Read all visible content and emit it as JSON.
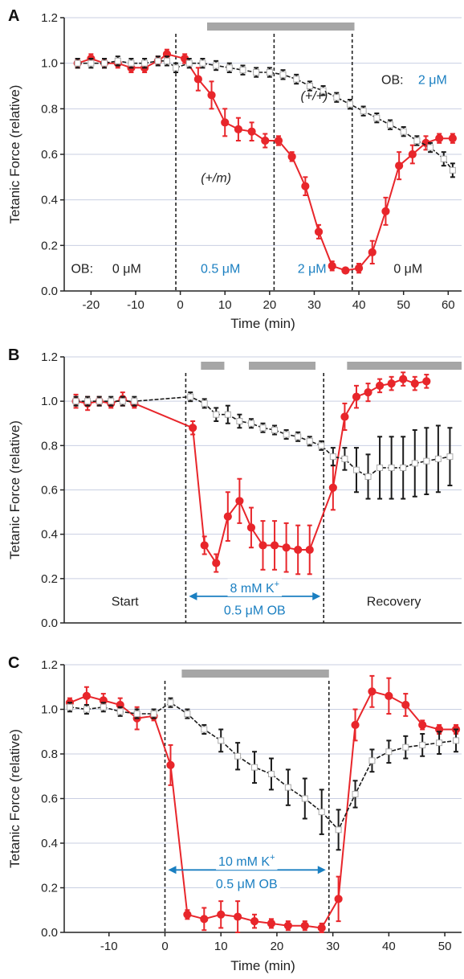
{
  "colors": {
    "red": "#e8262b",
    "black": "#1a1a1a",
    "grey_bar": "#a6a6a6",
    "grid": "#c9cfe2",
    "blue": "#1a7fc1"
  },
  "chart_data": [
    {
      "type": "line",
      "panel": "A",
      "xlabel": "Time (min)",
      "ylabel": "Tetanic Force (relative)",
      "xlim": [
        -26,
        63
      ],
      "ylim": [
        0,
        1.2
      ],
      "xticks": [
        -20,
        -10,
        0,
        10,
        20,
        30,
        40,
        50,
        60
      ],
      "yticks": [
        0.0,
        0.2,
        0.4,
        0.6,
        0.8,
        1.0,
        1.2
      ],
      "ytick_labels": [
        "0.0",
        "0.2",
        "0.4",
        "0.6",
        "0.8",
        "1.0",
        "1.2"
      ],
      "grid": true,
      "vlines": [
        -1,
        21,
        38.5
      ],
      "grey_bars": [
        [
          6,
          39
        ]
      ],
      "series": [
        {
          "color": "red",
          "marker": "circle",
          "x": [
            -23,
            -20,
            -17,
            -14,
            -11,
            -8,
            -5,
            -3,
            1,
            4,
            7,
            10,
            13,
            16,
            19,
            22,
            25,
            28,
            31,
            34,
            37,
            40,
            43,
            46,
            49,
            52,
            55,
            58,
            61
          ],
          "y": [
            1.0,
            1.02,
            1.0,
            1.0,
            0.98,
            0.98,
            1.01,
            1.04,
            1.02,
            0.93,
            0.86,
            0.74,
            0.71,
            0.7,
            0.66,
            0.66,
            0.59,
            0.46,
            0.26,
            0.11,
            0.09,
            0.1,
            0.17,
            0.35,
            0.55,
            0.6,
            0.65,
            0.67,
            0.67
          ],
          "err": [
            0.02,
            0.02,
            0.02,
            0.02,
            0.02,
            0.02,
            0.02,
            0.02,
            0.02,
            0.05,
            0.06,
            0.06,
            0.05,
            0.04,
            0.03,
            0.02,
            0.02,
            0.04,
            0.03,
            0.02,
            0.01,
            0.02,
            0.05,
            0.06,
            0.06,
            0.04,
            0.03,
            0.02,
            0.02
          ]
        },
        {
          "color": "black",
          "marker": "square",
          "x": [
            -23,
            -20,
            -17,
            -14,
            -11,
            -8,
            -5,
            -3,
            -1,
            2,
            5,
            8,
            11,
            14,
            17,
            20,
            23,
            26,
            29,
            32,
            35,
            38,
            41,
            44,
            47,
            50,
            53,
            56,
            59,
            61
          ],
          "y": [
            1.0,
            1.0,
            1.0,
            1.01,
            1.0,
            1.0,
            1.01,
            1.01,
            0.98,
            1.0,
            1.0,
            0.99,
            0.98,
            0.97,
            0.96,
            0.96,
            0.95,
            0.93,
            0.9,
            0.88,
            0.85,
            0.82,
            0.79,
            0.76,
            0.73,
            0.7,
            0.66,
            0.63,
            0.58,
            0.53
          ],
          "err": [
            0.02,
            0.02,
            0.02,
            0.02,
            0.02,
            0.02,
            0.02,
            0.02,
            0.02,
            0.02,
            0.02,
            0.02,
            0.02,
            0.02,
            0.02,
            0.02,
            0.02,
            0.02,
            0.02,
            0.02,
            0.02,
            0.02,
            0.02,
            0.02,
            0.02,
            0.02,
            0.02,
            0.02,
            0.03,
            0.03
          ]
        }
      ],
      "annotations": [
        {
          "text": "OB:",
          "x": -22,
          "y": 0.1,
          "color": "black"
        },
        {
          "text": "0 μM",
          "x": -12,
          "y": 0.1,
          "color": "black"
        },
        {
          "text": "0.5 μM",
          "x": 9,
          "y": 0.1,
          "color": "blue"
        },
        {
          "text": "2 μM",
          "x": 29.5,
          "y": 0.1,
          "color": "blue"
        },
        {
          "text": "0 μM",
          "x": 51,
          "y": 0.1,
          "color": "black"
        },
        {
          "text": "(+/+)",
          "x": 30,
          "y": 0.86,
          "color": "black",
          "italic": true
        },
        {
          "text": "(+/m)",
          "x": 8,
          "y": 0.5,
          "color": "black",
          "italic": true
        },
        {
          "text": "OB:",
          "x": 47.5,
          "y": 0.93,
          "color": "black"
        },
        {
          "text": "2 μM",
          "x": 56.5,
          "y": 0.93,
          "color": "blue"
        }
      ]
    },
    {
      "type": "line",
      "panel": "B",
      "xlabel": "",
      "ylabel": "Tetanic Force (relative)",
      "xlim": [
        0,
        34
      ],
      "ylim": [
        0,
        1.2
      ],
      "yticks": [
        0.0,
        0.2,
        0.4,
        0.6,
        0.8,
        1.0,
        1.2
      ],
      "ytick_labels": [
        "0.0",
        "0.2",
        "0.4",
        "0.6",
        "0.8",
        "1.0",
        "1.2"
      ],
      "grid": true,
      "vlines": [
        10.4,
        22.2
      ],
      "grey_bars": [
        [
          11.7,
          13.7
        ],
        [
          15.8,
          21.5
        ],
        [
          24.2,
          34
        ]
      ],
      "series": [
        {
          "color": "red",
          "marker": "circle",
          "x": [
            1,
            2,
            3,
            4,
            5,
            6,
            11,
            12,
            13,
            14,
            15,
            16,
            17,
            18,
            19,
            20,
            21,
            23,
            24,
            25,
            26,
            27,
            28,
            29,
            30,
            31
          ],
          "y": [
            1.0,
            0.99,
            1.0,
            0.99,
            1.01,
            0.99,
            0.88,
            0.35,
            0.27,
            0.48,
            0.55,
            0.43,
            0.35,
            0.35,
            0.34,
            0.33,
            0.33,
            0.61,
            0.93,
            1.02,
            1.04,
            1.07,
            1.08,
            1.1,
            1.08,
            1.09
          ],
          "err": [
            0.03,
            0.03,
            0.02,
            0.02,
            0.03,
            0.02,
            0.03,
            0.04,
            0.04,
            0.11,
            0.1,
            0.09,
            0.11,
            0.11,
            0.11,
            0.11,
            0.11,
            0.1,
            0.06,
            0.05,
            0.04,
            0.03,
            0.03,
            0.03,
            0.03,
            0.03
          ]
        },
        {
          "color": "black",
          "marker": "square",
          "x": [
            1,
            2,
            3,
            4,
            5,
            6,
            10.8,
            12,
            13,
            14,
            15,
            16,
            17,
            18,
            19,
            20,
            21,
            22,
            23,
            24,
            25,
            26,
            27,
            28,
            29,
            30,
            31,
            32,
            33
          ],
          "y": [
            1.0,
            1.0,
            1.0,
            1.0,
            1.0,
            1.0,
            1.02,
            0.99,
            0.94,
            0.94,
            0.91,
            0.9,
            0.88,
            0.87,
            0.85,
            0.84,
            0.82,
            0.8,
            0.75,
            0.74,
            0.69,
            0.66,
            0.7,
            0.7,
            0.7,
            0.72,
            0.73,
            0.74,
            0.75
          ],
          "err": [
            0.02,
            0.02,
            0.02,
            0.02,
            0.02,
            0.02,
            0.02,
            0.02,
            0.03,
            0.04,
            0.03,
            0.02,
            0.02,
            0.02,
            0.02,
            0.02,
            0.02,
            0.02,
            0.04,
            0.05,
            0.1,
            0.1,
            0.14,
            0.14,
            0.14,
            0.15,
            0.15,
            0.15,
            0.13
          ]
        }
      ],
      "annotations": [
        {
          "text": "Start",
          "x": 5.2,
          "y": 0.1,
          "color": "black"
        },
        {
          "text": "8 mM K",
          "x": 16.3,
          "y": 0.16,
          "color": "blue",
          "sup": "+"
        },
        {
          "text": "0.5 μM OB",
          "x": 16.3,
          "y": 0.06,
          "color": "blue"
        },
        {
          "text": "Recovery",
          "x": 28.2,
          "y": 0.1,
          "color": "black"
        }
      ],
      "arrows": [
        {
          "x1": 10.4,
          "x2": 22.2,
          "y": 0.12
        }
      ]
    },
    {
      "type": "line",
      "panel": "C",
      "xlabel": "Time (min)",
      "ylabel": "Tetanic Force (relative)",
      "xlim": [
        -18,
        53
      ],
      "ylim": [
        0,
        1.2
      ],
      "xticks": [
        -10,
        0,
        10,
        20,
        30,
        40,
        50
      ],
      "yticks": [
        0.0,
        0.2,
        0.4,
        0.6,
        0.8,
        1.0,
        1.2
      ],
      "ytick_labels": [
        "0.0",
        "0.2",
        "0.4",
        "0.6",
        "0.8",
        "1.0",
        "1.2"
      ],
      "grid": true,
      "vlines": [
        0,
        29.3
      ],
      "grey_bars": [
        [
          3,
          29.3
        ]
      ],
      "series": [
        {
          "color": "red",
          "marker": "circle",
          "x": [
            -17,
            -14,
            -11,
            -8,
            -5,
            -2,
            1,
            4,
            7,
            10,
            13,
            16,
            19,
            22,
            25,
            28,
            31,
            34,
            37,
            40,
            43,
            46,
            49,
            52
          ],
          "y": [
            1.03,
            1.06,
            1.04,
            1.02,
            0.96,
            0.97,
            0.75,
            0.08,
            0.06,
            0.08,
            0.07,
            0.05,
            0.04,
            0.03,
            0.03,
            0.02,
            0.15,
            0.93,
            1.08,
            1.06,
            1.02,
            0.93,
            0.91,
            0.91
          ],
          "err": [
            0.02,
            0.04,
            0.03,
            0.03,
            0.05,
            0.02,
            0.09,
            0.02,
            0.05,
            0.06,
            0.07,
            0.03,
            0.02,
            0.02,
            0.02,
            0.02,
            0.1,
            0.07,
            0.07,
            0.08,
            0.05,
            0.02,
            0.02,
            0.02
          ]
        },
        {
          "color": "black",
          "marker": "square",
          "x": [
            -17,
            -14,
            -11,
            -8,
            -5,
            -2,
            1,
            4,
            7,
            10,
            13,
            16,
            19,
            22,
            25,
            28,
            31,
            34,
            37,
            40,
            43,
            46,
            49,
            52
          ],
          "y": [
            1.01,
            1.0,
            1.01,
            0.99,
            0.98,
            0.98,
            1.03,
            0.98,
            0.91,
            0.86,
            0.79,
            0.74,
            0.71,
            0.65,
            0.6,
            0.54,
            0.46,
            0.62,
            0.77,
            0.81,
            0.83,
            0.84,
            0.85,
            0.86
          ],
          "err": [
            0.02,
            0.02,
            0.02,
            0.02,
            0.02,
            0.02,
            0.02,
            0.02,
            0.02,
            0.05,
            0.06,
            0.07,
            0.07,
            0.08,
            0.09,
            0.1,
            0.09,
            0.06,
            0.05,
            0.05,
            0.05,
            0.05,
            0.05,
            0.05
          ]
        }
      ],
      "annotations": [
        {
          "text": "10 mM K",
          "x": 14.6,
          "y": 0.32,
          "color": "blue",
          "sup": "+"
        },
        {
          "text": "0.5 μM OB",
          "x": 14.6,
          "y": 0.22,
          "color": "blue"
        }
      ],
      "arrows": [
        {
          "x1": 0,
          "x2": 29.3,
          "y": 0.28
        }
      ]
    }
  ]
}
